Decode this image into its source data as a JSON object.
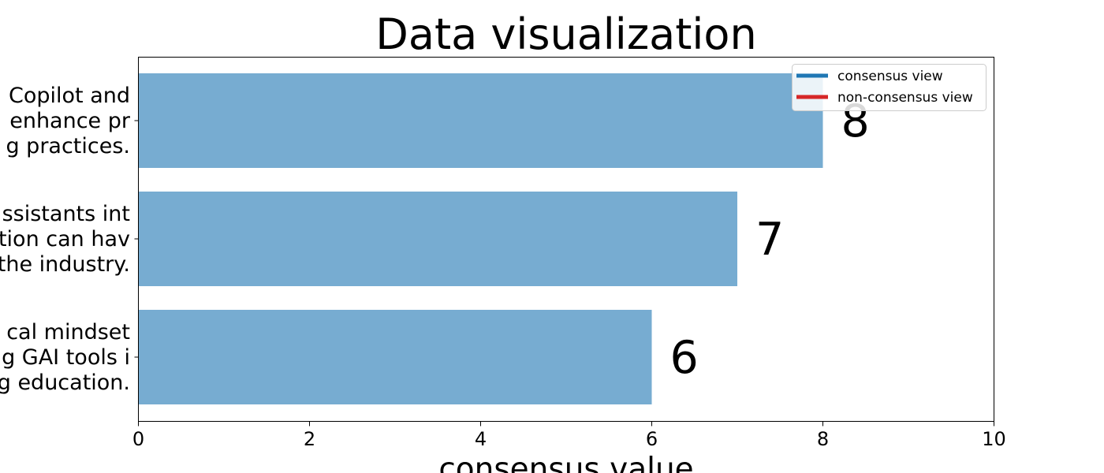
{
  "chart_data": {
    "type": "bar",
    "orientation": "horizontal",
    "title": "Data visualization",
    "xlabel": "consensus value",
    "ylabel": "",
    "xlim": [
      0,
      10
    ],
    "xticks": [
      0,
      2,
      4,
      6,
      8,
      10
    ],
    "grid": false,
    "legend_position": "top-right",
    "categories": [
      [
        "Copilot and",
        "enhance pr",
        "g practices."
      ],
      [
        "ssistants int",
        "tion can hav",
        "the industry."
      ],
      [
        "cal mindset",
        "g GAI tools i",
        "g education."
      ]
    ],
    "values": [
      8,
      7,
      6
    ],
    "data_labels": [
      "8",
      "7",
      "6"
    ],
    "bar_color": "#77acd1",
    "legend": [
      {
        "label": "consensus view",
        "color": "#1f77b4"
      },
      {
        "label": "non-consensus view",
        "color": "#d62728"
      }
    ]
  }
}
